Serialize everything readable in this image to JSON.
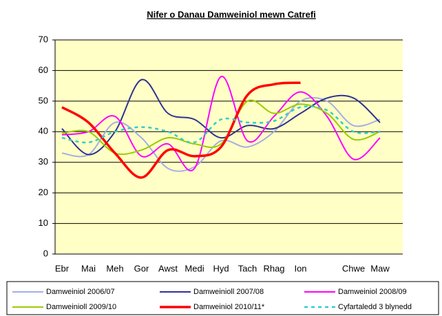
{
  "chart_data": {
    "type": "line",
    "title": "Nifer o Danau Damweiniol mewn Catrefi",
    "categories": [
      "Ebr",
      "Mai",
      "Meh",
      "Gor",
      "Awst",
      "Medi",
      "Hyd",
      "Tach",
      "Rhag",
      "Ion",
      null,
      "Chwe",
      "Maw"
    ],
    "series": [
      {
        "name": "Damweiniol 2006/07",
        "color": "#a3aee6",
        "values": [
          33,
          32.5,
          43,
          38,
          28,
          28.5,
          37,
          35,
          40,
          50,
          50,
          42,
          44
        ]
      },
      {
        "name": "Damweinioll 2007/08",
        "color": "#2e3192",
        "values": [
          41,
          32.5,
          40,
          57,
          46,
          44,
          38,
          42,
          41,
          46,
          51,
          51,
          43
        ]
      },
      {
        "name": "Damweiniol 2008/09",
        "color": "#ff00ff",
        "values": [
          39,
          40,
          45,
          32,
          36,
          28,
          58,
          37,
          45,
          53,
          45,
          31,
          38
        ]
      },
      {
        "name": "Damweinioll 2009/10",
        "color": "#99cc00",
        "values": [
          39.5,
          40,
          33,
          34,
          38,
          36,
          36,
          50,
          46,
          49,
          46,
          37.5,
          40
        ]
      },
      {
        "name": "Damweiniol 2010/11*",
        "color": "#ff0000",
        "values": [
          48,
          43,
          33,
          25,
          34,
          32,
          35,
          52,
          55.5,
          56,
          null,
          null,
          null
        ]
      },
      {
        "name": "Cyfartaledd 3 blynedd",
        "color": "#33cccc",
        "values": [
          38,
          36.5,
          40,
          41.5,
          40,
          36.5,
          44,
          43,
          43.5,
          48,
          47,
          40,
          40
        ]
      }
    ],
    "ylim": [
      0,
      70
    ],
    "yticks": [
      0,
      10,
      20,
      30,
      40,
      50,
      60,
      70
    ],
    "grid": true
  }
}
